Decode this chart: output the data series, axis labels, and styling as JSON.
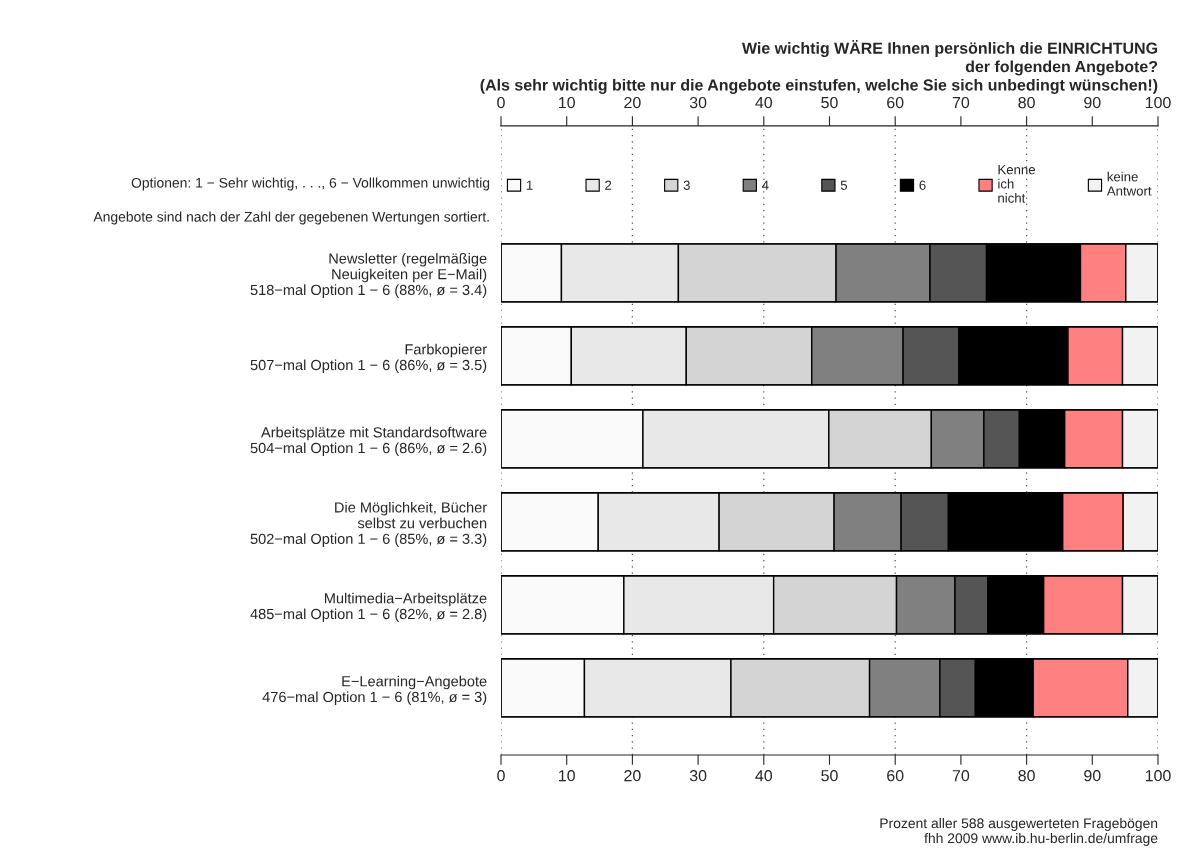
{
  "chart_data": {
    "type": "bar",
    "orientation": "horizontal",
    "stacked": true,
    "title": "Wie wichtig WÄRE Ihnen persönlich die EINRICHTUNG\nder folgenden Angebote?\n(Als sehr wichtig bitte nur die Angebote einstufen, welche Sie sich unbedingt wünschen!)",
    "categories": [
      "Newsletter (regelmäßige\nNeuigkeiten per E−Mail)\n518−mal Option 1 − 6 (88%, ø = 3.4)",
      "Farbkopierer\n507−mal Option 1 − 6 (86%, ø = 3.5)",
      "Arbeitsplätze mit Standardsoftware\n504−mal Option 1 − 6 (86%, ø = 2.6)",
      "Die Möglichkeit, Bücher\nselbst zu verbuchen\n502−mal Option 1 − 6 (85%, ø = 3.3)",
      "Multimedia−Arbeitsplätze\n485−mal Option 1 − 6 (82%, ø = 2.8)",
      "E−Learning−Angebote\n476−mal Option 1 − 6 (81%, ø = 3)"
    ],
    "series": [
      {
        "name": "1",
        "color": "#fafafa",
        "values": [
          9.2,
          10.7,
          21.6,
          14.8,
          18.7,
          12.7
        ]
      },
      {
        "name": "2",
        "color": "#e8e8e8",
        "values": [
          17.8,
          17.5,
          28.3,
          18.4,
          22.8,
          22.3
        ]
      },
      {
        "name": "3",
        "color": "#d4d4d4",
        "values": [
          24.0,
          19.1,
          15.6,
          17.5,
          18.7,
          21.1
        ]
      },
      {
        "name": "4",
        "color": "#808080",
        "values": [
          14.3,
          13.9,
          8.0,
          10.2,
          8.9,
          10.7
        ]
      },
      {
        "name": "5",
        "color": "#555555",
        "values": [
          8.6,
          8.5,
          5.4,
          7.2,
          5.0,
          5.4
        ]
      },
      {
        "name": "6",
        "color": "#000000",
        "values": [
          14.3,
          16.6,
          6.9,
          17.4,
          8.5,
          8.8
        ]
      },
      {
        "name": "Kenne\nich\nnicht",
        "color": "#ff8080",
        "values": [
          6.9,
          8.3,
          8.8,
          9.2,
          12.0,
          14.4
        ]
      },
      {
        "name": "keine\nAntwort",
        "color": "#f2f2f2",
        "values": [
          4.9,
          5.4,
          5.4,
          5.3,
          5.4,
          4.6
        ]
      }
    ],
    "xlim": [
      0,
      100
    ],
    "xticks": [
      0,
      10,
      20,
      30,
      40,
      50,
      60,
      70,
      80,
      90,
      100
    ],
    "x2lim": [
      0,
      100
    ],
    "x2ticks": [
      0,
      10,
      20,
      30,
      40,
      50,
      60,
      70,
      80,
      90,
      100
    ],
    "grid": "x",
    "legend": "top",
    "annotations": [
      "Optionen: 1 − Sehr wichtig, . . ., 6 − Vollkommen unwichtig",
      "Angebote sind nach der Zahl der gegebenen Wertungen sortiert.",
      "Prozent aller 588 ausgewerteten Fragebögen\nfhh 2009 www.ib.hu-berlin.de/umfrage"
    ]
  }
}
